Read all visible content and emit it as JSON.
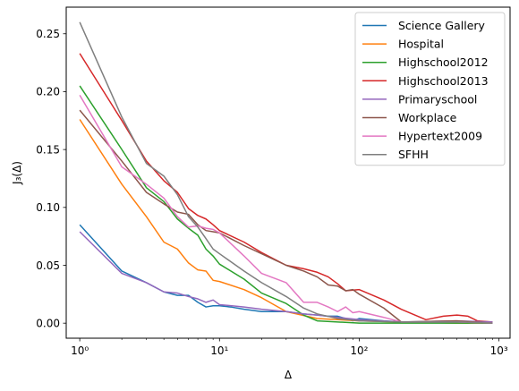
{
  "chart_data": {
    "type": "line",
    "title": "",
    "xlabel": "Δ",
    "ylabel": "J₃(Δ)",
    "xscale": "log",
    "xlim": [
      0.8,
      1200
    ],
    "ylim": [
      -0.013,
      0.273
    ],
    "xticks": [
      1,
      10,
      100,
      1000
    ],
    "xtick_labels": [
      "10⁰",
      "10¹",
      "10²",
      "10³"
    ],
    "yticks": [
      0.0,
      0.05,
      0.1,
      0.15,
      0.2,
      0.25
    ],
    "ytick_labels": [
      "0.00",
      "0.05",
      "0.10",
      "0.15",
      "0.20",
      "0.25"
    ],
    "grid": false,
    "legend_position": "top-right",
    "series": [
      {
        "name": "Science Gallery",
        "color": "#1f77b4",
        "points": [
          [
            1,
            0.085
          ],
          [
            2,
            0.045
          ],
          [
            3,
            0.035
          ],
          [
            4,
            0.027
          ],
          [
            5,
            0.024
          ],
          [
            6,
            0.024
          ],
          [
            7,
            0.018
          ],
          [
            8,
            0.014
          ],
          [
            9,
            0.015
          ],
          [
            10,
            0.015
          ],
          [
            12,
            0.014
          ],
          [
            15,
            0.012
          ],
          [
            20,
            0.01
          ],
          [
            30,
            0.01
          ],
          [
            40,
            0.008
          ],
          [
            50,
            0.007
          ],
          [
            60,
            0.006
          ],
          [
            70,
            0.006
          ],
          [
            80,
            0.004
          ],
          [
            90,
            0.002
          ],
          [
            100,
            0.004
          ],
          [
            150,
            0.002
          ],
          [
            200,
            0.001
          ],
          [
            300,
            0.001
          ],
          [
            500,
            0.001
          ],
          [
            900,
            0.0
          ]
        ]
      },
      {
        "name": "Hospital",
        "color": "#ff7f0e",
        "points": [
          [
            1,
            0.176
          ],
          [
            2,
            0.12
          ],
          [
            3,
            0.092
          ],
          [
            4,
            0.07
          ],
          [
            5,
            0.064
          ],
          [
            6,
            0.052
          ],
          [
            7,
            0.046
          ],
          [
            8,
            0.045
          ],
          [
            9,
            0.037
          ],
          [
            10,
            0.036
          ],
          [
            15,
            0.029
          ],
          [
            20,
            0.022
          ],
          [
            30,
            0.01
          ],
          [
            50,
            0.004
          ],
          [
            100,
            0.002
          ],
          [
            200,
            0.001
          ],
          [
            500,
            0.0
          ],
          [
            900,
            0.0
          ]
        ]
      },
      {
        "name": "Highschool2012",
        "color": "#2ca02c",
        "points": [
          [
            1,
            0.205
          ],
          [
            2,
            0.15
          ],
          [
            3,
            0.117
          ],
          [
            4,
            0.105
          ],
          [
            5,
            0.09
          ],
          [
            6,
            0.082
          ],
          [
            7,
            0.076
          ],
          [
            8,
            0.064
          ],
          [
            9,
            0.058
          ],
          [
            10,
            0.051
          ],
          [
            15,
            0.038
          ],
          [
            20,
            0.026
          ],
          [
            30,
            0.017
          ],
          [
            40,
            0.007
          ],
          [
            50,
            0.002
          ],
          [
            100,
            0.0
          ],
          [
            200,
            0.0
          ],
          [
            500,
            0.0
          ],
          [
            900,
            0.0
          ]
        ]
      },
      {
        "name": "Highschool2013",
        "color": "#d62728",
        "points": [
          [
            1,
            0.233
          ],
          [
            2,
            0.175
          ],
          [
            3,
            0.14
          ],
          [
            4,
            0.123
          ],
          [
            5,
            0.113
          ],
          [
            6,
            0.099
          ],
          [
            7,
            0.093
          ],
          [
            8,
            0.09
          ],
          [
            9,
            0.085
          ],
          [
            10,
            0.08
          ],
          [
            15,
            0.07
          ],
          [
            20,
            0.061
          ],
          [
            30,
            0.05
          ],
          [
            40,
            0.047
          ],
          [
            50,
            0.044
          ],
          [
            60,
            0.04
          ],
          [
            70,
            0.034
          ],
          [
            80,
            0.028
          ],
          [
            100,
            0.029
          ],
          [
            150,
            0.02
          ],
          [
            200,
            0.012
          ],
          [
            300,
            0.003
          ],
          [
            400,
            0.006
          ],
          [
            500,
            0.007
          ],
          [
            600,
            0.006
          ],
          [
            700,
            0.002
          ],
          [
            900,
            0.001
          ]
        ]
      },
      {
        "name": "Primaryschool",
        "color": "#9467bd",
        "points": [
          [
            1,
            0.079
          ],
          [
            2,
            0.043
          ],
          [
            3,
            0.035
          ],
          [
            4,
            0.027
          ],
          [
            5,
            0.026
          ],
          [
            6,
            0.023
          ],
          [
            7,
            0.021
          ],
          [
            8,
            0.018
          ],
          [
            9,
            0.02
          ],
          [
            10,
            0.016
          ],
          [
            15,
            0.014
          ],
          [
            20,
            0.012
          ],
          [
            30,
            0.01
          ],
          [
            40,
            0.008
          ],
          [
            50,
            0.007
          ],
          [
            70,
            0.005
          ],
          [
            100,
            0.003
          ],
          [
            200,
            0.001
          ],
          [
            500,
            0.002
          ],
          [
            900,
            0.001
          ]
        ]
      },
      {
        "name": "Workplace",
        "color": "#8c564b",
        "points": [
          [
            1,
            0.184
          ],
          [
            2,
            0.14
          ],
          [
            3,
            0.113
          ],
          [
            4,
            0.103
          ],
          [
            5,
            0.096
          ],
          [
            6,
            0.094
          ],
          [
            7,
            0.085
          ],
          [
            8,
            0.08
          ],
          [
            9,
            0.079
          ],
          [
            10,
            0.078
          ],
          [
            15,
            0.067
          ],
          [
            20,
            0.06
          ],
          [
            30,
            0.05
          ],
          [
            40,
            0.045
          ],
          [
            50,
            0.04
          ],
          [
            60,
            0.033
          ],
          [
            70,
            0.032
          ],
          [
            80,
            0.028
          ],
          [
            90,
            0.029
          ],
          [
            100,
            0.025
          ],
          [
            150,
            0.013
          ],
          [
            200,
            0.001
          ],
          [
            500,
            0.002
          ],
          [
            900,
            0.0
          ]
        ]
      },
      {
        "name": "Hypertext2009",
        "color": "#e377c2",
        "points": [
          [
            1,
            0.197
          ],
          [
            2,
            0.135
          ],
          [
            3,
            0.12
          ],
          [
            4,
            0.108
          ],
          [
            5,
            0.092
          ],
          [
            6,
            0.083
          ],
          [
            7,
            0.084
          ],
          [
            8,
            0.082
          ],
          [
            9,
            0.081
          ],
          [
            10,
            0.078
          ],
          [
            15,
            0.058
          ],
          [
            20,
            0.043
          ],
          [
            30,
            0.035
          ],
          [
            40,
            0.018
          ],
          [
            50,
            0.018
          ],
          [
            60,
            0.014
          ],
          [
            70,
            0.01
          ],
          [
            80,
            0.014
          ],
          [
            90,
            0.009
          ],
          [
            100,
            0.01
          ],
          [
            150,
            0.005
          ],
          [
            200,
            0.001
          ],
          [
            500,
            0.001
          ],
          [
            900,
            0.0
          ]
        ]
      },
      {
        "name": "SFHH",
        "color": "#7f7f7f",
        "points": [
          [
            1,
            0.26
          ],
          [
            2,
            0.178
          ],
          [
            3,
            0.138
          ],
          [
            4,
            0.127
          ],
          [
            5,
            0.111
          ],
          [
            6,
            0.092
          ],
          [
            7,
            0.083
          ],
          [
            8,
            0.073
          ],
          [
            9,
            0.064
          ],
          [
            10,
            0.06
          ],
          [
            15,
            0.045
          ],
          [
            20,
            0.035
          ],
          [
            30,
            0.023
          ],
          [
            40,
            0.013
          ],
          [
            50,
            0.008
          ],
          [
            70,
            0.004
          ],
          [
            100,
            0.002
          ],
          [
            200,
            0.001
          ],
          [
            500,
            0.001
          ],
          [
            900,
            0.0
          ]
        ]
      }
    ]
  }
}
